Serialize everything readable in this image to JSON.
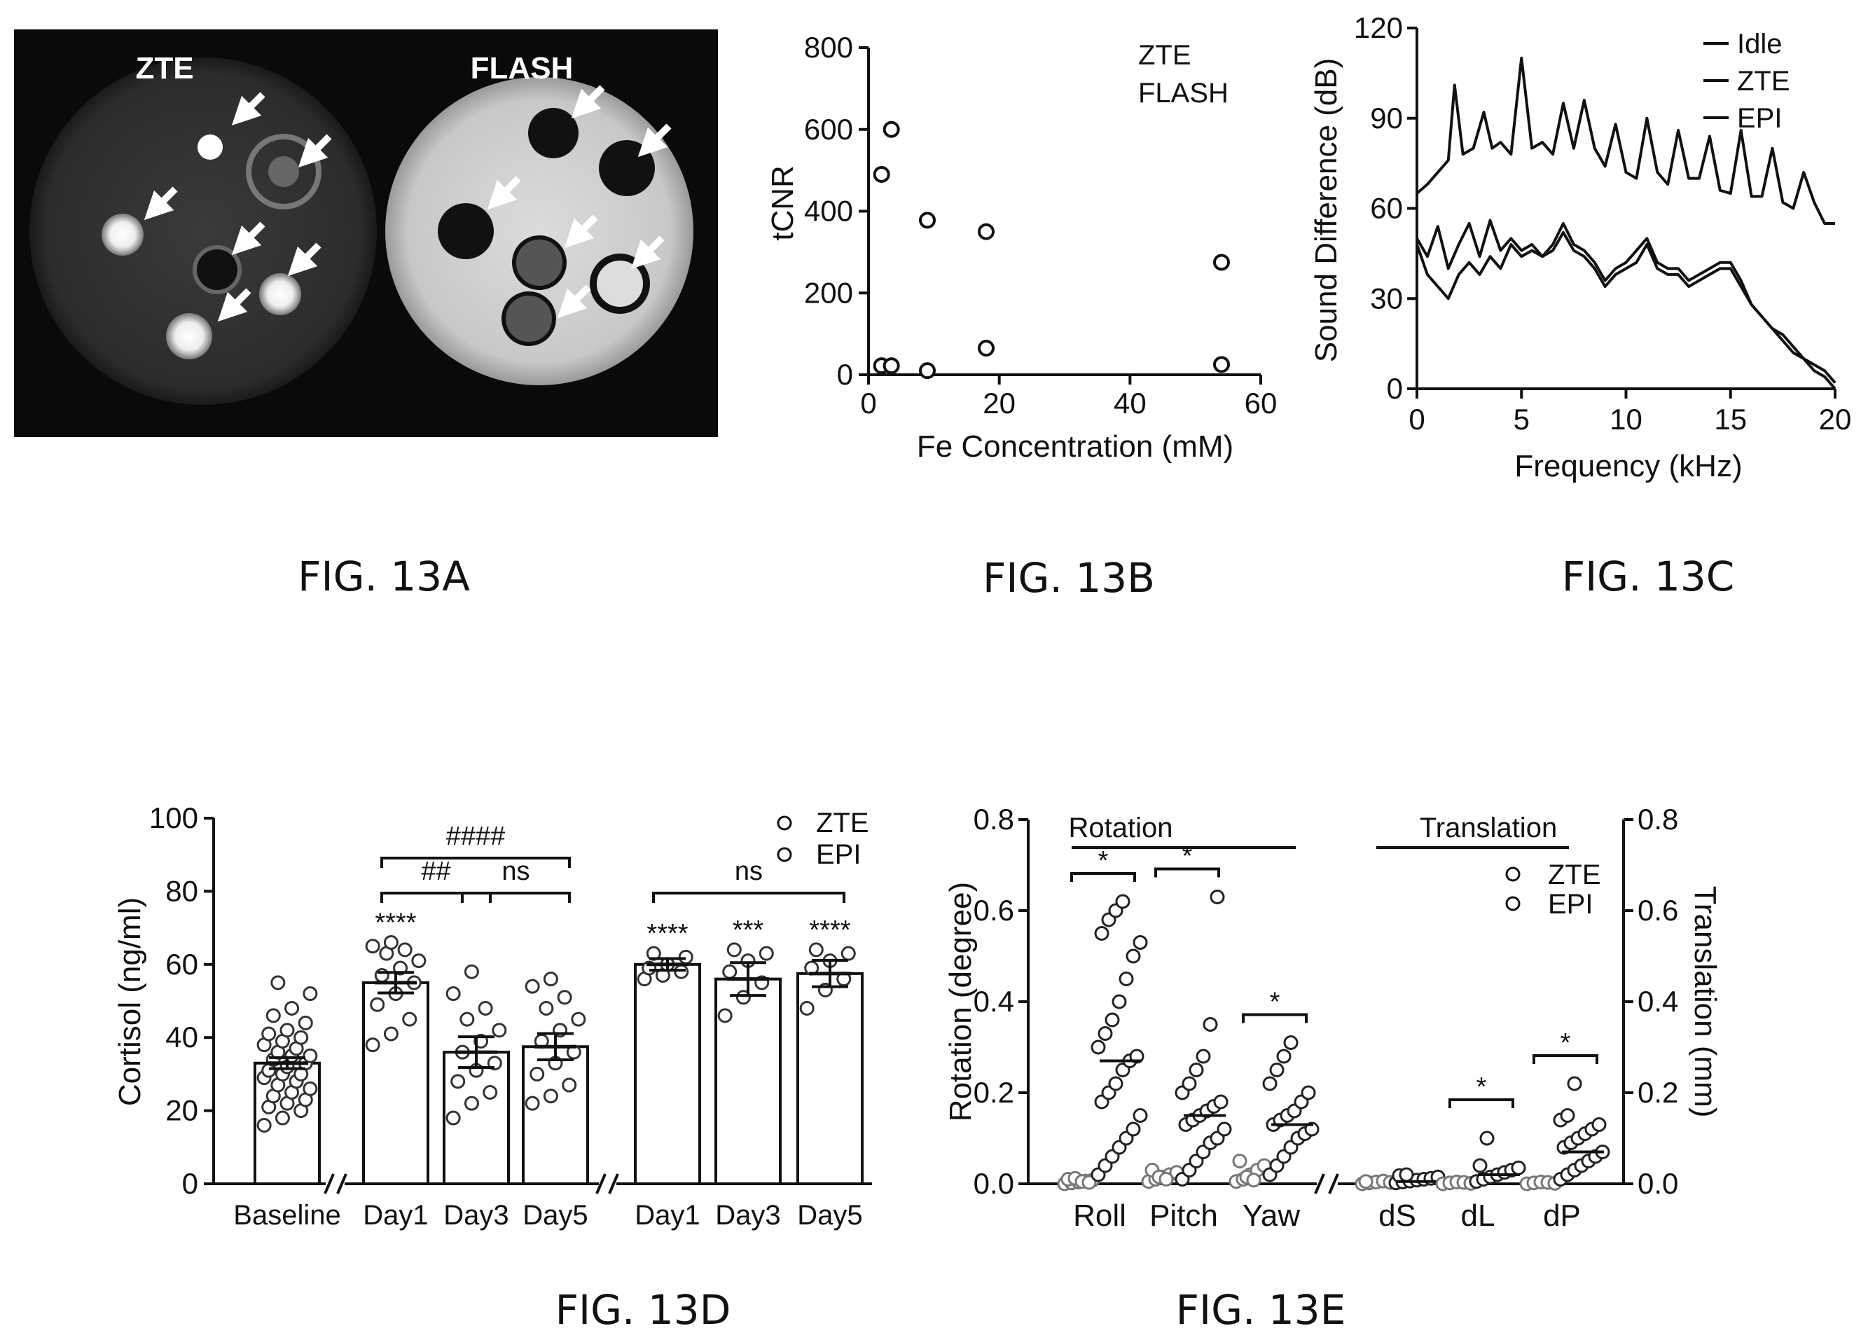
{
  "captions": {
    "a": "FIG. 13A",
    "b": "FIG. 13B",
    "c": "FIG. 13C",
    "d": "FIG. 13D",
    "e": "FIG. 13E"
  },
  "panel_a": {
    "left_label": "ZTE",
    "right_label": "FLASH"
  },
  "chart_data": [
    {
      "id": "13B",
      "type": "scatter",
      "xlabel": "Fe Concentration (mM)",
      "ylabel": "tCNR",
      "xlim": [
        0,
        60
      ],
      "ylim": [
        0,
        800
      ],
      "xticks": [
        "0",
        "20",
        "40",
        "60"
      ],
      "yticks": [
        "0",
        "200",
        "400",
        "600",
        "800"
      ],
      "legend": [
        "ZTE",
        "FLASH"
      ],
      "legend_position": "top-right",
      "series": [
        {
          "name": "ZTE",
          "x": [
            2,
            3.5,
            9,
            18,
            54
          ],
          "y": [
            22,
            22,
            10,
            65,
            25
          ]
        },
        {
          "name": "FLASH",
          "x": [
            2,
            3.5,
            9,
            18,
            54
          ],
          "y": [
            490,
            600,
            378,
            350,
            275
          ]
        }
      ]
    },
    {
      "id": "13C",
      "type": "line",
      "xlabel": "Frequency (kHz)",
      "ylabel": "Sound Difference (dB)",
      "xlim": [
        0,
        20
      ],
      "ylim": [
        0,
        120
      ],
      "xticks": [
        "0",
        "5",
        "10",
        "15",
        "20"
      ],
      "yticks": [
        "0",
        "30",
        "60",
        "90",
        "120"
      ],
      "legend": [
        "Idle",
        "ZTE",
        "EPI"
      ],
      "legend_position": "top-right",
      "series": [
        {
          "name": "EPI",
          "x": [
            0,
            0.5,
            1,
            1.5,
            1.8,
            2.2,
            2.7,
            3.2,
            3.6,
            4,
            4.5,
            5,
            5.5,
            6,
            6.5,
            7,
            7.5,
            8,
            8.5,
            9,
            9.5,
            10,
            10.5,
            11,
            11.5,
            12,
            12.5,
            13,
            13.5,
            14,
            14.5,
            15,
            15.5,
            16,
            16.5,
            17,
            17.5,
            18,
            18.5,
            19,
            19.5,
            20
          ],
          "y": [
            65,
            68,
            72,
            76,
            101,
            78,
            80,
            92,
            80,
            82,
            78,
            110,
            80,
            82,
            78,
            95,
            80,
            96,
            80,
            74,
            88,
            72,
            70,
            90,
            72,
            68,
            86,
            70,
            70,
            84,
            66,
            65,
            86,
            64,
            64,
            80,
            62,
            60,
            72,
            62,
            55,
            55
          ]
        },
        {
          "name": "ZTE",
          "x": [
            0,
            0.5,
            1,
            1.5,
            2,
            2.5,
            3,
            3.5,
            4,
            4.5,
            5,
            5.5,
            6,
            6.5,
            7,
            7.5,
            8,
            8.5,
            9,
            9.5,
            10,
            10.5,
            11,
            11.5,
            12,
            12.5,
            13,
            13.5,
            14,
            14.5,
            15,
            15.5,
            16,
            16.5,
            17,
            17.5,
            18,
            18.5,
            19,
            19.5,
            20
          ],
          "y": [
            50,
            44,
            54,
            40,
            48,
            55,
            44,
            56,
            46,
            50,
            46,
            48,
            44,
            48,
            55,
            48,
            46,
            42,
            36,
            40,
            42,
            46,
            50,
            42,
            40,
            40,
            36,
            38,
            40,
            42,
            42,
            36,
            28,
            24,
            20,
            18,
            14,
            10,
            8,
            6,
            2
          ]
        },
        {
          "name": "Idle",
          "x": [
            0,
            0.5,
            1,
            1.5,
            2,
            2.5,
            3,
            3.5,
            4,
            4.5,
            5,
            5.5,
            6,
            6.5,
            7,
            7.5,
            8,
            8.5,
            9,
            9.5,
            10,
            10.5,
            11,
            11.5,
            12,
            12.5,
            13,
            13.5,
            14,
            14.5,
            15,
            15.5,
            16,
            16.5,
            17,
            17.5,
            18,
            18.5,
            19,
            19.5,
            20
          ],
          "y": [
            48,
            38,
            34,
            30,
            38,
            42,
            38,
            44,
            40,
            48,
            44,
            46,
            44,
            46,
            52,
            46,
            44,
            40,
            34,
            38,
            40,
            42,
            48,
            40,
            38,
            38,
            34,
            36,
            38,
            40,
            40,
            34,
            28,
            24,
            20,
            16,
            12,
            10,
            6,
            4,
            0
          ]
        }
      ]
    },
    {
      "id": "13D",
      "type": "bar",
      "ylabel": "Cortisol (ng/ml)",
      "ylim": [
        0,
        100
      ],
      "yticks": [
        "0",
        "20",
        "40",
        "60",
        "80",
        "100"
      ],
      "legend": [
        "ZTE",
        "EPI"
      ],
      "legend_position": "top-right",
      "groups": [
        {
          "label": "Baseline",
          "mean": 33,
          "sem": 1.5,
          "sig": "",
          "points": [
            16,
            18,
            20,
            21,
            22,
            23,
            24,
            25,
            26,
            27,
            28,
            29,
            30,
            30,
            31,
            32,
            33,
            34,
            35,
            35,
            36,
            37,
            38,
            39,
            40,
            41,
            42,
            44,
            46,
            48,
            52,
            55
          ]
        },
        {
          "label": "Day1",
          "mean": 55,
          "sem": 2.8,
          "sig": "****",
          "points": [
            38,
            41,
            45,
            49,
            52,
            55,
            57,
            59,
            61,
            63,
            64,
            65,
            66
          ]
        },
        {
          "label": "Day3",
          "mean": 36,
          "sem": 4.2,
          "sig": "",
          "points": [
            18,
            22,
            25,
            28,
            31,
            33,
            36,
            39,
            42,
            45,
            48,
            52,
            58
          ]
        },
        {
          "label": "Day5",
          "mean": 37.5,
          "sem": 3.6,
          "sig": "",
          "points": [
            22,
            24,
            27,
            30,
            33,
            36,
            39,
            42,
            45,
            48,
            51,
            54,
            56
          ]
        },
        {
          "label": "Day1",
          "mean": 60,
          "sem": 1.6,
          "sig": "****",
          "points": [
            56,
            57,
            58,
            59,
            60,
            62,
            63
          ]
        },
        {
          "label": "Day3",
          "mean": 56,
          "sem": 4.5,
          "sig": "***",
          "points": [
            46,
            51,
            55,
            58,
            61,
            63,
            64
          ]
        },
        {
          "label": "Day5",
          "mean": 57.5,
          "sem": 3.6,
          "sig": "****",
          "points": [
            48,
            53,
            56,
            59,
            61,
            63,
            64
          ]
        }
      ],
      "brackets": [
        {
          "from": 1,
          "to": 3,
          "label": "####"
        },
        {
          "from": 1,
          "to": 2,
          "label": "##"
        },
        {
          "from": 2,
          "to": 3,
          "label": "ns"
        },
        {
          "from": 4,
          "to": 6,
          "label": "ns"
        }
      ]
    },
    {
      "id": "13E",
      "type": "scatter",
      "ylabel": "Rotation (degree)",
      "y2label": "Translation (mm)",
      "ylim": [
        0,
        0.8
      ],
      "yticks": [
        "0.0",
        "0.2",
        "0.4",
        "0.6",
        "0.8"
      ],
      "group_headers": [
        "Rotation",
        "Translation"
      ],
      "legend": [
        "ZTE",
        "EPI"
      ],
      "legend_position": "top-right",
      "categories": [
        "Roll",
        "Pitch",
        "Yaw",
        "dS",
        "dL",
        "dP"
      ],
      "epi_median": [
        0.27,
        0.15,
        0.13,
        0.005,
        0.02,
        0.07
      ],
      "sig": [
        "*",
        "*",
        "*",
        "",
        "*",
        "*"
      ],
      "zte_points": [
        [
          0,
          0.002,
          0.004,
          0.006,
          0.008,
          0.01,
          0.012,
          0.005,
          0.003
        ],
        [
          0.005,
          0.01,
          0.015,
          0.02,
          0.025,
          0.03,
          0.015,
          0.01
        ],
        [
          0.005,
          0.01,
          0.02,
          0.03,
          0.04,
          0.05,
          0.015,
          0.008
        ],
        [
          0,
          0.002,
          0.004,
          0.006,
          0.003,
          0.005
        ],
        [
          0,
          0.002,
          0.004,
          0.003,
          0.001
        ],
        [
          0,
          0.002,
          0.004,
          0.003,
          0.001
        ]
      ],
      "epi_points": [
        [
          0.02,
          0.04,
          0.06,
          0.08,
          0.1,
          0.12,
          0.15,
          0.18,
          0.2,
          0.22,
          0.25,
          0.27,
          0.28,
          0.3,
          0.33,
          0.36,
          0.4,
          0.45,
          0.5,
          0.53,
          0.55,
          0.58,
          0.6,
          0.62
        ],
        [
          0.01,
          0.03,
          0.05,
          0.07,
          0.09,
          0.1,
          0.12,
          0.13,
          0.14,
          0.15,
          0.16,
          0.17,
          0.18,
          0.2,
          0.22,
          0.25,
          0.28,
          0.35,
          0.63
        ],
        [
          0.02,
          0.04,
          0.06,
          0.08,
          0.1,
          0.11,
          0.12,
          0.13,
          0.14,
          0.15,
          0.16,
          0.18,
          0.2,
          0.22,
          0.25,
          0.28,
          0.31
        ],
        [
          0.002,
          0.004,
          0.006,
          0.008,
          0.01,
          0.012,
          0.015,
          0.018,
          0.02
        ],
        [
          0.005,
          0.01,
          0.015,
          0.02,
          0.025,
          0.03,
          0.035,
          0.04,
          0.1
        ],
        [
          0.01,
          0.02,
          0.03,
          0.04,
          0.05,
          0.06,
          0.07,
          0.08,
          0.09,
          0.1,
          0.11,
          0.12,
          0.13,
          0.14,
          0.15,
          0.22
        ]
      ]
    }
  ]
}
